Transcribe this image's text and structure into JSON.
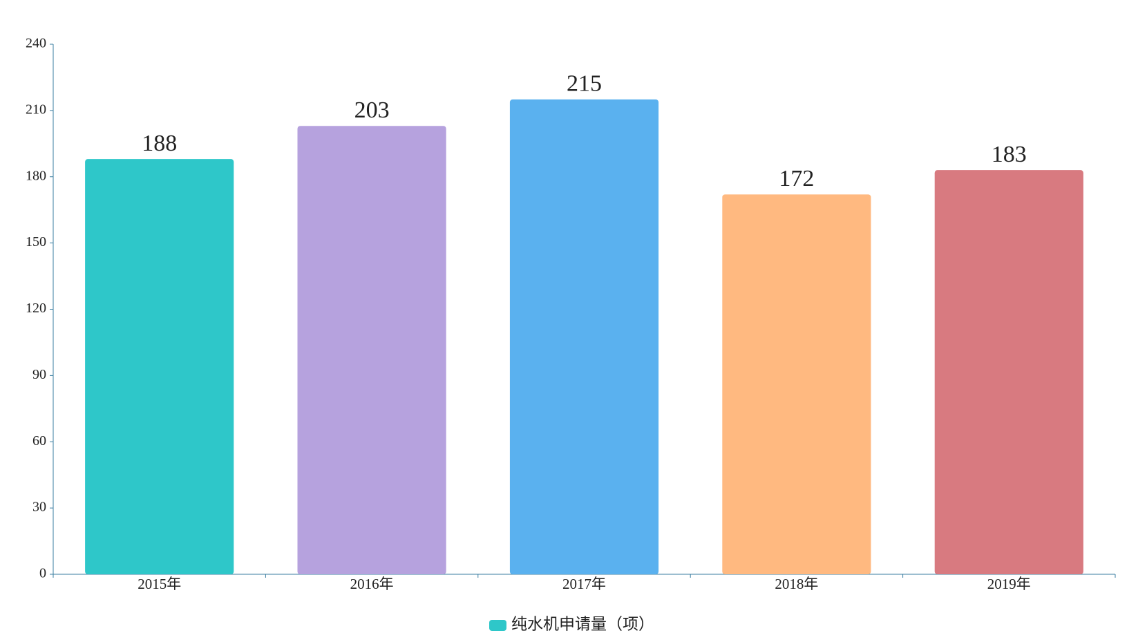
{
  "chart_data": {
    "type": "bar",
    "categories": [
      "2015年",
      "2016年",
      "2017年",
      "2018年",
      "2019年"
    ],
    "series": [
      {
        "name": "纯水机申请量（项）",
        "color": "#2ec7c9",
        "values": [
          188,
          203,
          215,
          172,
          183
        ]
      }
    ],
    "bar_colors": [
      "#2ec7c9",
      "#b6a2de",
      "#5ab1ef",
      "#ffb980",
      "#d87a80"
    ],
    "ylim": [
      0,
      240
    ],
    "yticks": [
      0,
      30,
      60,
      90,
      120,
      150,
      180,
      210,
      240
    ],
    "axis_color": "#3a7ea1",
    "legend": "bottom"
  }
}
